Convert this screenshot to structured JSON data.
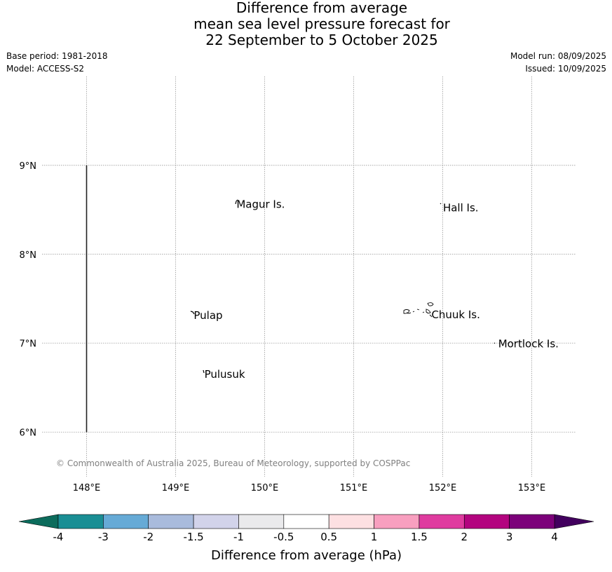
{
  "title": {
    "line1": "Difference from average",
    "line2": "mean sea level pressure forecast for",
    "line3": "22 September to 5 October 2025"
  },
  "meta": {
    "base_period": "Base period: 1981-2018",
    "model": "Model: ACCESS-S2",
    "model_run": "Model run: 08/09/2025",
    "issued": "Issued: 10/09/2025"
  },
  "map": {
    "lon_range": [
      147.5,
      153.5
    ],
    "lat_range": [
      5.5,
      10.0
    ],
    "lon_ticks": [
      {
        "value": 148,
        "label": "148°E"
      },
      {
        "value": 149,
        "label": "149°E"
      },
      {
        "value": 150,
        "label": "150°E"
      },
      {
        "value": 151,
        "label": "151°E"
      },
      {
        "value": 152,
        "label": "152°E"
      },
      {
        "value": 153,
        "label": "153°E"
      }
    ],
    "lat_ticks": [
      {
        "value": 9,
        "label": "9°N"
      },
      {
        "value": 8,
        "label": "8°N"
      },
      {
        "value": 7,
        "label": "7°N"
      },
      {
        "value": 6,
        "label": "6°N"
      }
    ],
    "gridlines": true,
    "boundary_line": {
      "lon": 148,
      "lat_from": 6,
      "lat_to": 9
    },
    "places": [
      {
        "name": "Magur Is.",
        "lon": 149.66,
        "lat": 8.57
      },
      {
        "name": "Hall Is.",
        "lon": 151.98,
        "lat": 8.53
      },
      {
        "name": "Pulap",
        "lon": 149.18,
        "lat": 7.32
      },
      {
        "name": "Chuuk Is.",
        "lon": 151.85,
        "lat": 7.33
      },
      {
        "name": "Mortlock Is.",
        "lon": 152.6,
        "lat": 7.0
      },
      {
        "name": "Pulusuk",
        "lon": 149.3,
        "lat": 6.66
      }
    ],
    "copyright": "© Commonwealth of Australia 2025, Bureau of Meteorology, supported by COSPPac"
  },
  "colorbar": {
    "title": "Difference from average (hPa)",
    "labels": [
      "-4",
      "-3",
      "-2",
      "-1.5",
      "-1",
      "-0.5",
      "0.5",
      "1",
      "1.5",
      "2",
      "3",
      "4"
    ],
    "colors": [
      "#1a8e94",
      "#66aad6",
      "#a9bbdc",
      "#d2d3ea",
      "#eaeaec",
      "#ffffff",
      "#fde0e2",
      "#f89fbf",
      "#df3b9f",
      "#b3047f",
      "#7c017a"
    ],
    "extend_low_color": "#0c6c5c",
    "extend_high_color": "#42005e"
  }
}
